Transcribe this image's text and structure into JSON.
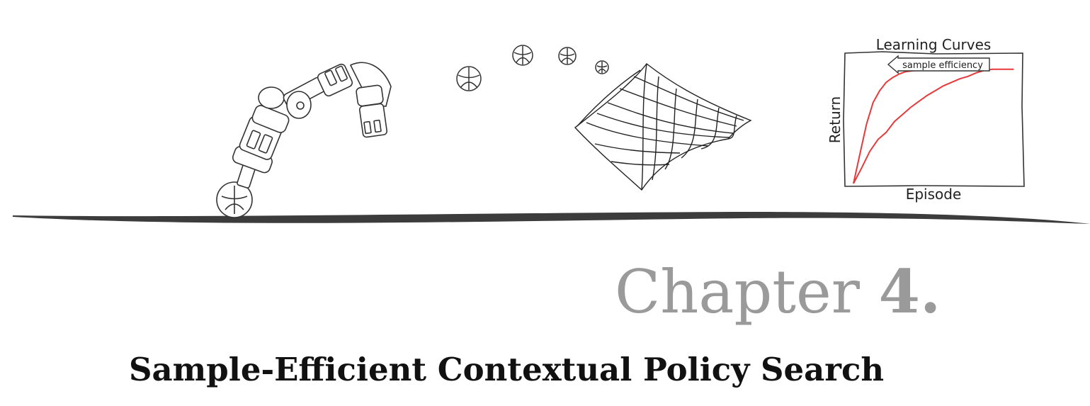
{
  "chapter": {
    "label": "Chapter",
    "number": "4.",
    "title": "Sample-Efficient Contextual Policy Search"
  },
  "chart_data": {
    "type": "line",
    "title": "Learning Curves",
    "xlabel": "Episode",
    "ylabel": "Return",
    "grid": false,
    "xlim": [
      0,
      1
    ],
    "ylim": [
      0,
      1
    ],
    "annotation": "sample efficiency",
    "series": [
      {
        "color": "#e8393a",
        "x": [
          0.0,
          0.04,
          0.08,
          0.12,
          0.16,
          0.2,
          0.24,
          0.28,
          0.32,
          0.38
        ],
        "y": [
          0.0,
          0.25,
          0.5,
          0.68,
          0.78,
          0.85,
          0.89,
          0.92,
          0.94,
          0.95
        ]
      },
      {
        "color": "#e8393a",
        "x": [
          0.0,
          0.05,
          0.1,
          0.15,
          0.2,
          0.25,
          0.3,
          0.35,
          0.4,
          0.45,
          0.5,
          0.55,
          0.6,
          0.65,
          0.7,
          0.75,
          0.8,
          0.85,
          0.9,
          0.95,
          0.98
        ],
        "y": [
          0.0,
          0.13,
          0.27,
          0.37,
          0.43,
          0.52,
          0.58,
          0.64,
          0.69,
          0.74,
          0.78,
          0.82,
          0.85,
          0.88,
          0.9,
          0.93,
          0.95,
          0.96,
          0.96,
          0.96,
          0.96
        ]
      }
    ]
  },
  "colors": {
    "ink": "#333333",
    "curve": "#e8393a",
    "chapter_grey": "#9a9a9a"
  }
}
